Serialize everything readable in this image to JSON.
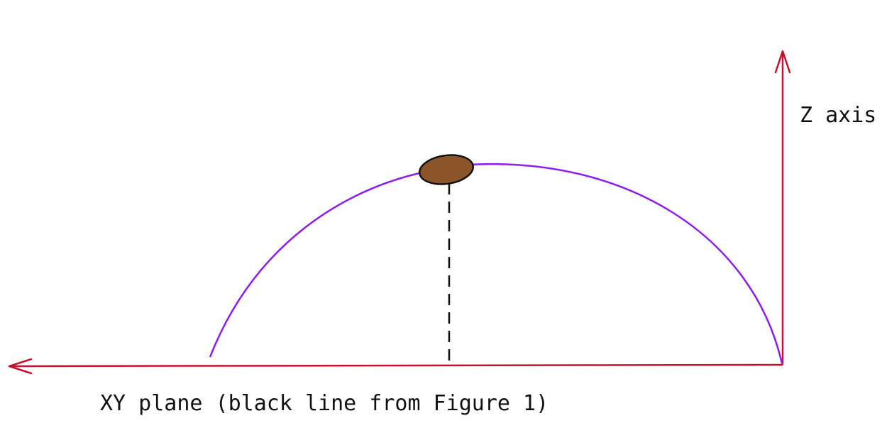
{
  "labels": {
    "z_axis": "Z axis",
    "xy_plane": "XY plane (black line from Figure 1)"
  },
  "colors": {
    "axis": "#c8102e",
    "arc": "#8b1cf2",
    "object_fill": "#8b5529",
    "object_stroke": "#111111",
    "dashed_line": "#111111"
  },
  "icons": {
    "z_arrowhead": "arrow-up-icon",
    "xy_arrowhead": "arrow-left-icon"
  }
}
